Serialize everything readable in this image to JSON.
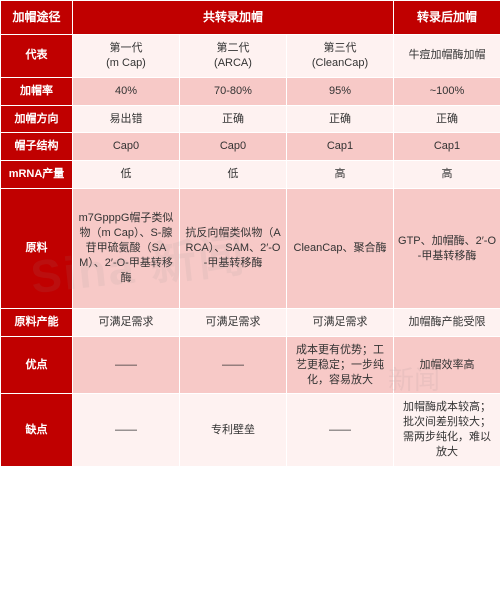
{
  "colors": {
    "header_bg": "#c00000",
    "header_fg": "#ffffff",
    "row_light": "#fef2f1",
    "row_dark": "#f7c9c7",
    "border": "#ffffff"
  },
  "header": {
    "col0": "加帽途径",
    "group1": "共转录加帽",
    "group2": "转录后加帽"
  },
  "rows": [
    {
      "label": "代表",
      "cells": [
        "第一代\n(m Cap)",
        "第二代\n(ARCA)",
        "第三代\n(CleanCap)",
        "牛痘加帽酶加帽"
      ]
    },
    {
      "label": "加帽率",
      "cells": [
        "40%",
        "70-80%",
        "95%",
        "~100%"
      ]
    },
    {
      "label": "加帽方向",
      "cells": [
        "易出错",
        "正确",
        "正确",
        "正确"
      ]
    },
    {
      "label": "帽子结构",
      "cells": [
        "Cap0",
        "Cap0",
        "Cap1",
        "Cap1"
      ]
    },
    {
      "label": "mRNA产量",
      "cells": [
        "低",
        "低",
        "高",
        "高"
      ]
    },
    {
      "label": "原料",
      "tall": true,
      "cells": [
        "m7GpppG帽子类似物（m Cap）、S-腺苷甲硫氨酸（SAM）、2′-O-甲基转移酶",
        "抗反向帽类似物（ARCA）、SAM、2′-O-甲基转移酶",
        "CleanCap、聚合酶",
        "GTP、加帽酶、2′-O-甲基转移酶"
      ]
    },
    {
      "label": "原料产能",
      "cells": [
        "可满足需求",
        "可满足需求",
        "可满足需求",
        "加帽酶产能受限"
      ]
    },
    {
      "label": "优点",
      "med": true,
      "cells": [
        "——",
        "——",
        "成本更有优势；工艺更稳定；一步纯化，容易放大",
        "加帽效率高"
      ]
    },
    {
      "label": "缺点",
      "med": true,
      "cells": [
        "——",
        "专利壁垒",
        "——",
        "加帽酶成本较高；批次间差别较大；需两步纯化，难以放大"
      ]
    }
  ],
  "watermark": {
    "text1": "Sina  新闻",
    "text2": "新闻"
  }
}
